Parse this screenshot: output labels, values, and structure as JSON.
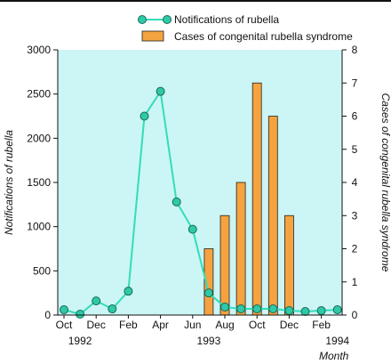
{
  "chart_data": {
    "type": "bar+line",
    "title": "",
    "x_categories": [
      "Oct 1992",
      "Nov 1992",
      "Dec 1992",
      "Jan 1993",
      "Feb 1993",
      "Mar 1993",
      "Apr 1993",
      "May 1993",
      "Jun 1993",
      "Jul 1993",
      "Aug 1993",
      "Sep 1993",
      "Oct 1993",
      "Nov 1993",
      "Dec 1993",
      "Jan 1994",
      "Feb 1994",
      "Mar 1994"
    ],
    "x_tick_labels": [
      {
        "category_index": 0,
        "label": "Oct"
      },
      {
        "category_index": 2,
        "label": "Dec"
      },
      {
        "category_index": 4,
        "label": "Feb"
      },
      {
        "category_index": 6,
        "label": "Apr"
      },
      {
        "category_index": 8,
        "label": "Jun"
      },
      {
        "category_index": 10,
        "label": "Aug"
      },
      {
        "category_index": 12,
        "label": "Oct"
      },
      {
        "category_index": 14,
        "label": "Dec"
      },
      {
        "category_index": 16,
        "label": "Feb"
      }
    ],
    "year_labels": [
      {
        "category_index": 1,
        "label": "1992"
      },
      {
        "category_index": 9,
        "label": "1993"
      },
      {
        "category_index": 17,
        "label": "1994"
      }
    ],
    "xlabel": "Month",
    "ylabel_left": "Notifications of rubella",
    "ylabel_right": "Cases of congenital rubella syndrome",
    "ylim_left": [
      0,
      3000
    ],
    "yticks_left": [
      "0",
      "500",
      "1000",
      "1500",
      "2000",
      "2500",
      "3000"
    ],
    "ylim_right": [
      0,
      8
    ],
    "yticks_right": [
      "0",
      "1",
      "2",
      "3",
      "4",
      "5",
      "6",
      "7",
      "8"
    ],
    "grid": false,
    "plot_background": "#ccf5f5",
    "series": [
      {
        "name": "Notifications of rubella",
        "type": "line",
        "axis": "left",
        "color": "#33ddb8",
        "marker_fill": "#2ec9a6",
        "values": [
          60,
          10,
          160,
          70,
          270,
          2250,
          2530,
          1280,
          970,
          250,
          90,
          70,
          70,
          70,
          50,
          40,
          50,
          60
        ]
      },
      {
        "name": "Cases of congenital rubella syndrome",
        "type": "bar",
        "axis": "right",
        "color": "#f5a340",
        "values": [
          0,
          0,
          0,
          0,
          0,
          0,
          0,
          0,
          0,
          2,
          3,
          4,
          7,
          6,
          3,
          0,
          0,
          0
        ]
      }
    ],
    "legend": {
      "placement": "top-center",
      "entries": [
        "Notifications of rubella",
        "Cases of congenital rubella syndrome"
      ]
    }
  }
}
